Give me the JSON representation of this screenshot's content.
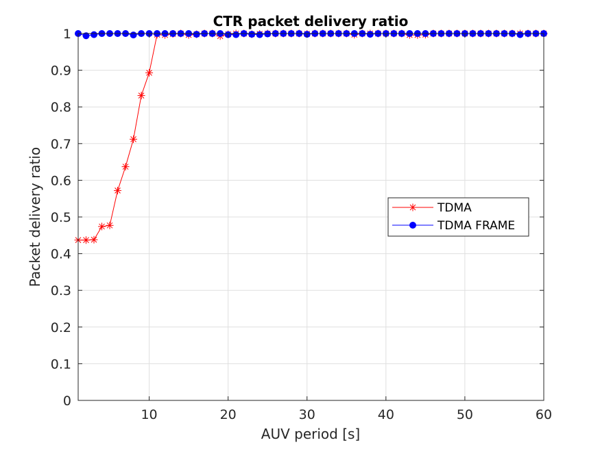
{
  "chart_data": {
    "type": "line",
    "title": "CTR packet delivery ratio",
    "xlabel": "AUV period [s]",
    "ylabel": "Packet delivery ratio",
    "xlim": [
      1,
      60
    ],
    "ylim": [
      0,
      1
    ],
    "xticks": [
      10,
      20,
      30,
      40,
      50,
      60
    ],
    "yticks": [
      0,
      0.1,
      0.2,
      0.3,
      0.4,
      0.5,
      0.6,
      0.7,
      0.8,
      0.9,
      1
    ],
    "ytick_labels": [
      "0",
      "0.1",
      "0.2",
      "0.3",
      "0.4",
      "0.5",
      "0.6",
      "0.7",
      "0.8",
      "0.9",
      "1"
    ],
    "grid": true,
    "legend_position": "right",
    "x": [
      1,
      2,
      3,
      4,
      5,
      6,
      7,
      8,
      9,
      10,
      11,
      12,
      13,
      14,
      15,
      16,
      17,
      18,
      19,
      20,
      21,
      22,
      23,
      24,
      25,
      26,
      27,
      28,
      29,
      30,
      31,
      32,
      33,
      34,
      35,
      36,
      37,
      38,
      39,
      40,
      41,
      42,
      43,
      44,
      45,
      46,
      47,
      48,
      49,
      50,
      51,
      52,
      53,
      54,
      55,
      56,
      57,
      58,
      59,
      60
    ],
    "series": [
      {
        "name": "TDMA",
        "color": "#ff0000",
        "marker": "asterisk",
        "values": [
          0.437,
          0.437,
          0.438,
          0.474,
          0.477,
          0.572,
          0.637,
          0.712,
          0.831,
          0.893,
          0.997,
          0.996,
          0.999,
          1,
          0.996,
          0.998,
          1,
          1,
          0.993,
          0.998,
          1,
          1,
          0.998,
          0.999,
          1,
          1,
          1,
          1,
          1,
          0.999,
          1,
          1,
          1,
          1,
          1,
          0.997,
          1,
          1,
          1,
          1,
          1,
          1,
          0.996,
          0.996,
          0.997,
          1,
          1,
          1,
          1,
          1,
          1,
          1,
          1,
          1,
          1,
          1,
          1,
          1,
          1,
          1
        ]
      },
      {
        "name": "TDMA FRAME",
        "color": "#0000ff",
        "marker": "circle",
        "values": [
          1,
          0.994,
          0.997,
          1,
          1,
          1,
          1,
          0.996,
          1,
          1,
          1,
          1,
          1,
          1,
          1,
          0.998,
          1,
          1,
          1,
          0.997,
          0.997,
          1,
          0.998,
          0.997,
          0.999,
          1,
          1,
          1,
          1,
          0.998,
          1,
          1,
          1,
          1,
          1,
          1,
          1,
          0.998,
          1,
          1,
          1,
          1,
          1,
          1,
          1,
          1,
          1,
          1,
          1,
          1,
          1,
          1,
          1,
          1,
          1,
          1,
          0.997,
          1,
          1,
          1
        ]
      }
    ]
  }
}
